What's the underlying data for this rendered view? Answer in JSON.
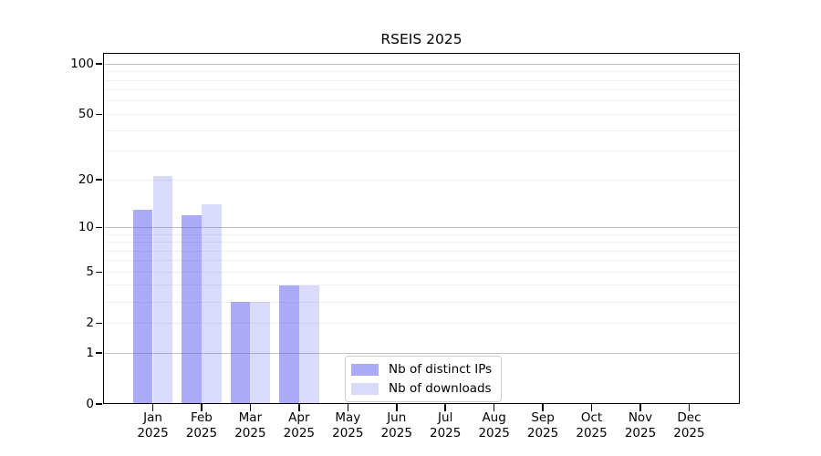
{
  "title": "RSEIS 2025",
  "colors": {
    "bar_base": "#5555ee",
    "series_dark": "rgba(85,85,238,0.5)",
    "series_light": "rgba(85,85,238,0.22)",
    "grid_major": "#c0c0c0",
    "grid_minor": "#efefef",
    "axis": "#000000",
    "legend_border": "#cccccc"
  },
  "chart_data": {
    "type": "bar",
    "title": "RSEIS 2025",
    "categories": [
      "Jan 2025",
      "Feb 2025",
      "Mar 2025",
      "Apr 2025",
      "May 2025",
      "Jun 2025",
      "Jul 2025",
      "Aug 2025",
      "Sep 2025",
      "Oct 2025",
      "Nov 2025",
      "Dec 2025"
    ],
    "x_tick_lines": [
      {
        "month": "Jan",
        "year": "2025"
      },
      {
        "month": "Feb",
        "year": "2025"
      },
      {
        "month": "Mar",
        "year": "2025"
      },
      {
        "month": "Apr",
        "year": "2025"
      },
      {
        "month": "May",
        "year": "2025"
      },
      {
        "month": "Jun",
        "year": "2025"
      },
      {
        "month": "Jul",
        "year": "2025"
      },
      {
        "month": "Aug",
        "year": "2025"
      },
      {
        "month": "Sep",
        "year": "2025"
      },
      {
        "month": "Oct",
        "year": "2025"
      },
      {
        "month": "Nov",
        "year": "2025"
      },
      {
        "month": "Dec",
        "year": "2025"
      }
    ],
    "series": [
      {
        "name": "Nb of distinct IPs",
        "color": "rgba(85,85,238,0.5)",
        "values": [
          13,
          12,
          3,
          4,
          0,
          0,
          0,
          0,
          0,
          0,
          0,
          0
        ]
      },
      {
        "name": "Nb of downloads",
        "color": "rgba(85,85,238,0.22)",
        "values": [
          21,
          14,
          3,
          4,
          0,
          0,
          0,
          0,
          0,
          0,
          0,
          0
        ]
      }
    ],
    "ylabel": "",
    "xlabel": "",
    "yscale": "log10(1+x)",
    "ylim": [
      0,
      117
    ],
    "yticks": [
      100,
      50,
      20,
      10,
      5,
      2,
      1,
      0
    ],
    "grid_major_values": [
      1,
      10,
      100
    ],
    "grid_minor_values": [
      2,
      3,
      4,
      5,
      6,
      7,
      8,
      9,
      20,
      30,
      40,
      50,
      60,
      70,
      80,
      90
    ],
    "grid": "horizontal",
    "legend_position": "inside lower-center"
  }
}
